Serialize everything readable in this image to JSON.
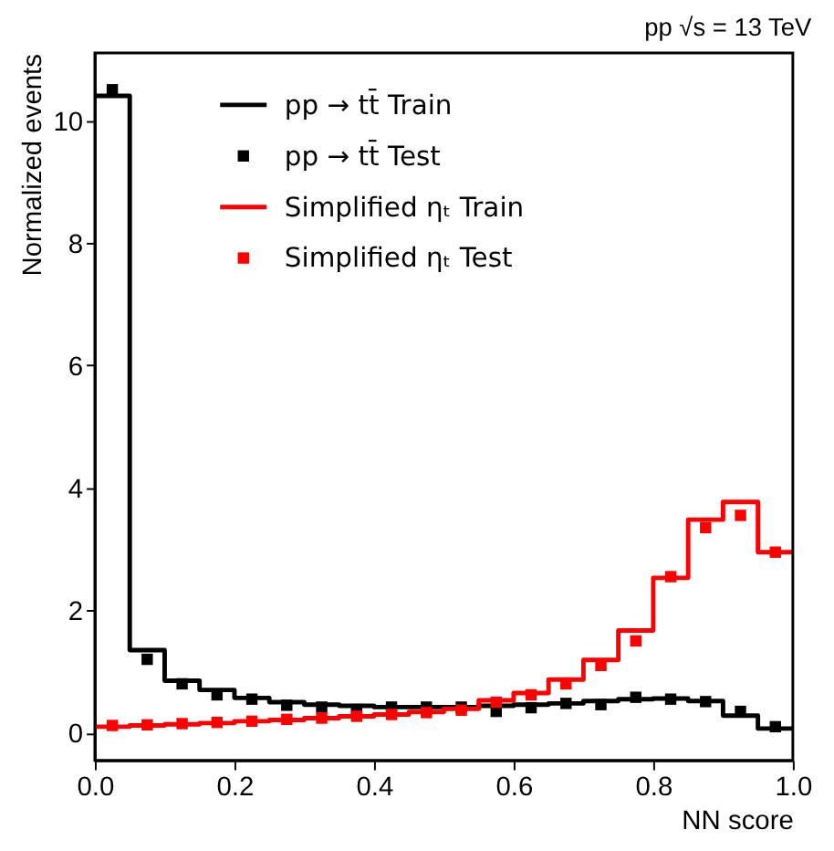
{
  "chart_data": {
    "type": "histogram",
    "title": "pp √s = 13 TeV",
    "xlabel": "NN score",
    "ylabel": "Normalized events",
    "bins": [
      0,
      0.05,
      0.1,
      0.15,
      0.2,
      0.25,
      0.3,
      0.35,
      0.4,
      0.45,
      0.5,
      0.55,
      0.6,
      0.65,
      0.7,
      0.75,
      0.8,
      0.85,
      0.9,
      0.95,
      1.0
    ],
    "series": [
      {
        "name": "pp → tt̄ Train",
        "color": "#000000",
        "values": [
          10.4,
          1.35,
          0.85,
          0.7,
          0.57,
          0.5,
          0.46,
          0.44,
          0.42,
          0.42,
          0.42,
          0.44,
          0.46,
          0.48,
          0.52,
          0.55,
          0.56,
          0.52,
          0.28,
          0.07
        ]
      },
      {
        "name": "pp → tt̄ Test",
        "type": "scatter",
        "color": "#000000",
        "x": [
          0.025,
          0.075,
          0.125,
          0.175,
          0.225,
          0.275,
          0.325,
          0.375,
          0.425,
          0.475,
          0.525,
          0.575,
          0.625,
          0.675,
          0.725,
          0.775,
          0.825,
          0.875,
          0.925,
          0.975
        ],
        "values": [
          10.5,
          1.2,
          0.8,
          0.62,
          0.55,
          0.45,
          0.42,
          0.38,
          0.42,
          0.42,
          0.42,
          0.35,
          0.41,
          0.48,
          0.46,
          0.58,
          0.55,
          0.51,
          0.35,
          0.1
        ]
      },
      {
        "name": "Simplified ηₜ Train",
        "color": "#ff0000",
        "values": [
          0.1,
          0.12,
          0.14,
          0.16,
          0.19,
          0.21,
          0.24,
          0.27,
          0.3,
          0.34,
          0.39,
          0.53,
          0.65,
          0.87,
          1.19,
          1.67,
          2.53,
          3.48,
          3.77,
          2.95
        ]
      },
      {
        "name": "Simplified ηₜ Test",
        "type": "scatter",
        "color": "#ff0000",
        "x": [
          0.025,
          0.075,
          0.125,
          0.175,
          0.225,
          0.275,
          0.325,
          0.375,
          0.425,
          0.475,
          0.525,
          0.575,
          0.625,
          0.675,
          0.725,
          0.775,
          0.825,
          0.875,
          0.925,
          0.975
        ],
        "values": [
          0.12,
          0.13,
          0.15,
          0.17,
          0.19,
          0.22,
          0.24,
          0.27,
          0.3,
          0.33,
          0.37,
          0.5,
          0.62,
          0.8,
          1.1,
          1.5,
          2.55,
          3.35,
          3.55,
          2.95
        ]
      }
    ],
    "xlim": [
      0,
      1
    ],
    "xticks": [
      {
        "value": 0,
        "label": "0.0"
      },
      {
        "value": 0.2,
        "label": "0.2"
      },
      {
        "value": 0.4,
        "label": "0.4"
      },
      {
        "value": 0.6,
        "label": "0.6"
      },
      {
        "value": 0.8,
        "label": "0.8"
      },
      {
        "value": 1,
        "label": "1.0"
      }
    ],
    "ylim": [
      -0.45,
      11.1
    ],
    "yticks": [
      0,
      2,
      4,
      6,
      8,
      10
    ],
    "marker": "square",
    "legend": "top",
    "grid": false
  }
}
